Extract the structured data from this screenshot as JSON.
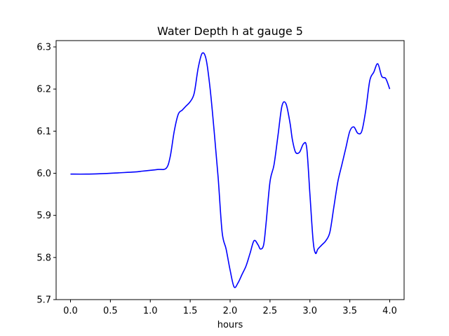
{
  "chart_data": {
    "type": "line",
    "title": "Water Depth h at gauge 5",
    "xlabel": "hours",
    "ylabel": "",
    "xlim": [
      -0.18,
      4.18
    ],
    "ylim": [
      5.7,
      6.315
    ],
    "xticks": [
      0.0,
      0.5,
      1.0,
      1.5,
      2.0,
      2.5,
      3.0,
      3.5,
      4.0
    ],
    "xtick_labels": [
      "0.0",
      "0.5",
      "1.0",
      "1.5",
      "2.0",
      "2.5",
      "3.0",
      "3.5",
      "4.0"
    ],
    "yticks": [
      5.7,
      5.8,
      5.9,
      6.0,
      6.1,
      6.2,
      6.3
    ],
    "ytick_labels": [
      "5.7",
      "5.8",
      "5.9",
      "6.0",
      "6.1",
      "6.2",
      "6.3"
    ],
    "grid": false,
    "series": [
      {
        "color": "#0000ff",
        "x": [
          0.0,
          0.2,
          0.4,
          0.6,
          0.8,
          0.9,
          1.0,
          1.1,
          1.2,
          1.25,
          1.3,
          1.35,
          1.4,
          1.45,
          1.5,
          1.55,
          1.6,
          1.65,
          1.7,
          1.75,
          1.8,
          1.85,
          1.9,
          1.95,
          2.0,
          2.05,
          2.1,
          2.15,
          2.2,
          2.25,
          2.3,
          2.35,
          2.38,
          2.42,
          2.45,
          2.5,
          2.55,
          2.6,
          2.65,
          2.7,
          2.75,
          2.78,
          2.82,
          2.87,
          2.92,
          2.96,
          3.0,
          3.04,
          3.07,
          3.1,
          3.15,
          3.2,
          3.25,
          3.3,
          3.35,
          3.4,
          3.45,
          3.5,
          3.55,
          3.6,
          3.65,
          3.7,
          3.75,
          3.8,
          3.85,
          3.9,
          3.95,
          4.0
        ],
        "y": [
          5.998,
          5.998,
          5.999,
          6.001,
          6.003,
          6.005,
          6.007,
          6.009,
          6.012,
          6.04,
          6.1,
          6.14,
          6.15,
          6.16,
          6.17,
          6.19,
          6.25,
          6.285,
          6.27,
          6.2,
          6.1,
          5.99,
          5.86,
          5.82,
          5.77,
          5.73,
          5.74,
          5.76,
          5.78,
          5.81,
          5.84,
          5.83,
          5.82,
          5.83,
          5.88,
          5.98,
          6.02,
          6.09,
          6.16,
          6.165,
          6.12,
          6.08,
          6.05,
          6.05,
          6.07,
          6.06,
          5.95,
          5.84,
          5.81,
          5.82,
          5.83,
          5.84,
          5.86,
          5.92,
          5.98,
          6.02,
          6.06,
          6.1,
          6.11,
          6.095,
          6.1,
          6.15,
          6.22,
          6.24,
          6.26,
          6.23,
          6.225,
          6.2
        ]
      }
    ]
  }
}
